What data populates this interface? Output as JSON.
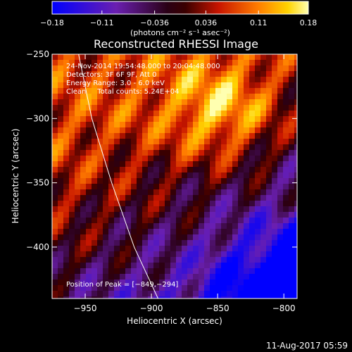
{
  "chart_data": {
    "type": "heatmap",
    "title": "Reconstructed RHESSI Image",
    "xlabel": "Heliocentric X (arcsec)",
    "ylabel": "Heliocentric Y (arcsec)",
    "xlim": [
      -975,
      -790
    ],
    "ylim": [
      -440,
      -250
    ],
    "x_ticks": [
      -950,
      -900,
      -850,
      -800
    ],
    "x_tick_labels": [
      "−950",
      "−900",
      "−850",
      "−800"
    ],
    "y_ticks": [
      -250,
      -300,
      -350,
      -400
    ],
    "y_tick_labels": [
      "−250",
      "−300",
      "−350",
      "−400"
    ],
    "colorbar": {
      "range": [
        -0.18,
        0.18
      ],
      "ticks": [
        -0.18,
        -0.11,
        -0.036,
        0.036,
        0.11,
        0.18
      ],
      "tick_labels": [
        "−0.18",
        "−0.11",
        "−0.036",
        "0.036",
        "0.11",
        "0.18"
      ],
      "unit_label": "(photons cm⁻² s⁻¹ asec⁻²)"
    },
    "annotations": [
      "24-Nov-2014 19:54:48.000 to 20:04:48.000",
      "Detectors: 3F 6F 9F, Att 0",
      "Energy Range: 3.0 - 6.0 keV",
      "Clean     Total counts: 5.24E+04"
    ],
    "peak": {
      "x": -849,
      "y": -294
    },
    "peak_label": "Position of Peak = [−849,−294]",
    "limb_points": [
      [
        -955,
        -250
      ],
      [
        -945,
        -300
      ],
      [
        -930,
        -350
      ],
      [
        -913,
        -400
      ],
      [
        -895,
        -440
      ]
    ],
    "grid": false
  },
  "footer": {
    "date": "11-Aug-2017 05:59"
  }
}
